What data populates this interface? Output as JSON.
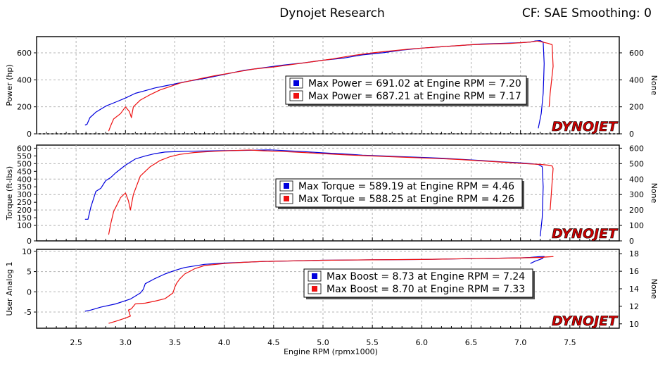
{
  "header": {
    "title": "Dynojet Research",
    "info": "CF: SAE Smoothing: 0"
  },
  "colors": {
    "run1": "#0000dd",
    "run2": "#ee1111",
    "grid": "#b4b4b4",
    "logo_red": "#cc0000"
  },
  "logo": "DYNOJET",
  "chart_data": [
    {
      "type": "line",
      "ylabel": "Power (hp)",
      "y2label": "None",
      "xlim": [
        2.1,
        8.0
      ],
      "ylim": [
        0,
        720
      ],
      "yticks": [
        0,
        200,
        400,
        600
      ],
      "y2ticks": [
        0,
        200,
        400,
        600
      ],
      "grid": true,
      "legend": [
        "Max Power = 691.02 at Engine RPM = 7.20",
        "Max Power = 687.21 at Engine RPM = 7.17"
      ],
      "series": [
        {
          "color": "run1",
          "x": [
            2.59,
            2.61,
            2.64,
            2.7,
            2.8,
            2.9,
            3.0,
            3.1,
            3.2,
            3.3,
            3.4,
            3.5,
            3.6,
            3.8,
            4.0,
            4.2,
            4.4,
            4.6,
            4.8,
            5.0,
            5.2,
            5.4,
            5.6,
            5.8,
            6.0,
            6.2,
            6.4,
            6.6,
            6.8,
            7.0,
            7.1,
            7.15,
            7.2,
            7.23,
            7.24,
            7.23,
            7.21,
            7.18
          ],
          "y": [
            65,
            70,
            120,
            160,
            205,
            235,
            265,
            300,
            320,
            340,
            355,
            370,
            385,
            410,
            440,
            470,
            490,
            510,
            525,
            545,
            560,
            585,
            600,
            620,
            635,
            645,
            655,
            665,
            670,
            675,
            680,
            688,
            691,
            680,
            520,
            300,
            150,
            40
          ]
        },
        {
          "color": "run2",
          "x": [
            2.83,
            2.85,
            2.88,
            2.95,
            3.0,
            3.04,
            3.06,
            3.08,
            3.15,
            3.25,
            3.35,
            3.45,
            3.55,
            3.7,
            3.9,
            4.1,
            4.3,
            4.5,
            4.7,
            4.9,
            5.1,
            5.3,
            5.5,
            5.7,
            5.9,
            6.1,
            6.3,
            6.5,
            6.7,
            6.9,
            7.1,
            7.17,
            7.22,
            7.28,
            7.32,
            7.33,
            7.3,
            7.29
          ],
          "y": [
            20,
            60,
            110,
            150,
            200,
            165,
            120,
            200,
            250,
            290,
            325,
            350,
            375,
            400,
            430,
            455,
            480,
            495,
            515,
            535,
            555,
            580,
            600,
            615,
            630,
            640,
            650,
            660,
            665,
            670,
            680,
            687,
            680,
            670,
            660,
            500,
            300,
            200
          ]
        }
      ]
    },
    {
      "type": "line",
      "ylabel": "Torque (ft-lbs)",
      "y2label": "None",
      "xlim": [
        2.1,
        8.0
      ],
      "ylim": [
        0,
        620
      ],
      "yticks": [
        0,
        100,
        150,
        200,
        250,
        300,
        350,
        400,
        450,
        500,
        550,
        600
      ],
      "y2ticks": [
        0,
        100,
        200,
        300,
        400,
        500,
        600
      ],
      "grid": true,
      "legend": [
        "Max Torque = 589.19 at Engine RPM = 4.46",
        "Max Torque = 588.25 at Engine RPM = 4.26"
      ],
      "series": [
        {
          "color": "run1",
          "x": [
            2.59,
            2.62,
            2.65,
            2.7,
            2.75,
            2.8,
            2.85,
            2.9,
            3.0,
            3.1,
            3.2,
            3.3,
            3.4,
            3.6,
            3.8,
            4.0,
            4.2,
            4.46,
            4.6,
            4.8,
            5.0,
            5.2,
            5.4,
            5.6,
            5.8,
            6.0,
            6.2,
            6.4,
            6.6,
            6.8,
            7.0,
            7.1,
            7.18,
            7.22,
            7.23,
            7.22,
            7.2
          ],
          "y": [
            140,
            140,
            220,
            320,
            340,
            390,
            410,
            440,
            490,
            530,
            550,
            565,
            575,
            580,
            582,
            584,
            586,
            589,
            585,
            578,
            570,
            563,
            555,
            550,
            545,
            540,
            535,
            528,
            520,
            512,
            505,
            500,
            495,
            480,
            350,
            150,
            30
          ]
        },
        {
          "color": "run2",
          "x": [
            2.83,
            2.85,
            2.88,
            2.95,
            3.0,
            3.03,
            3.05,
            3.08,
            3.15,
            3.25,
            3.35,
            3.45,
            3.55,
            3.7,
            3.9,
            4.1,
            4.26,
            4.4,
            4.6,
            4.8,
            5.0,
            5.2,
            5.4,
            5.6,
            5.8,
            6.0,
            6.2,
            6.4,
            6.6,
            6.8,
            7.0,
            7.1,
            7.2,
            7.28,
            7.32,
            7.33,
            7.3
          ],
          "y": [
            40,
            110,
            190,
            280,
            310,
            260,
            200,
            300,
            420,
            480,
            520,
            545,
            560,
            572,
            580,
            585,
            588,
            583,
            578,
            572,
            565,
            558,
            552,
            547,
            542,
            537,
            532,
            526,
            518,
            510,
            502,
            498,
            495,
            490,
            485,
            470,
            200
          ]
        }
      ]
    },
    {
      "type": "line",
      "ylabel": "User Analog 1",
      "y2label": "None",
      "xlim": [
        2.1,
        8.0
      ],
      "ylim": [
        -9,
        10.5
      ],
      "yticks": [
        -5,
        0,
        5,
        10
      ],
      "y2range": [
        9.5,
        18.5
      ],
      "y2ticks": [
        10,
        12,
        14,
        16,
        18
      ],
      "grid": true,
      "legend": [
        "Max Boost = 8.73 at Engine RPM = 7.24",
        "Max Boost = 8.70 at Engine RPM = 7.33"
      ],
      "series": [
        {
          "color": "run1",
          "x": [
            2.59,
            2.65,
            2.75,
            2.9,
            3.05,
            3.15,
            3.18,
            3.2,
            3.3,
            3.4,
            3.5,
            3.6,
            3.8,
            4.0,
            4.2,
            4.4,
            4.6,
            4.8,
            5.0,
            5.5,
            6.0,
            6.5,
            7.0,
            7.1,
            7.15,
            7.2,
            7.24,
            7.22,
            7.15,
            7.1
          ],
          "y": [
            -4.8,
            -4.5,
            -3.8,
            -3.0,
            -1.8,
            -0.3,
            0.6,
            2.0,
            3.3,
            4.4,
            5.3,
            6.0,
            6.8,
            7.1,
            7.3,
            7.5,
            7.6,
            7.7,
            7.8,
            7.9,
            8.0,
            8.2,
            8.4,
            8.5,
            8.6,
            8.7,
            8.73,
            8.2,
            7.6,
            7.0
          ]
        },
        {
          "color": "run2",
          "x": [
            2.83,
            2.9,
            3.0,
            3.05,
            3.03,
            3.06,
            3.1,
            3.2,
            3.3,
            3.4,
            3.48,
            3.5,
            3.52,
            3.55,
            3.6,
            3.7,
            3.8,
            4.0,
            4.2,
            4.4,
            4.6,
            4.8,
            5.0,
            5.5,
            6.0,
            6.5,
            7.0,
            7.2,
            7.33,
            7.25,
            7.2
          ],
          "y": [
            -7.8,
            -7.3,
            -6.5,
            -6.0,
            -4.5,
            -4.2,
            -3.0,
            -2.8,
            -2.3,
            -1.7,
            -0.3,
            1.2,
            2.2,
            3.2,
            4.4,
            5.7,
            6.5,
            7.0,
            7.3,
            7.5,
            7.6,
            7.7,
            7.8,
            7.9,
            8.0,
            8.2,
            8.4,
            8.5,
            8.7,
            8.6,
            8.4
          ]
        }
      ]
    }
  ],
  "xaxis": {
    "label": "Engine RPM (rpmx1000)",
    "ticks": [
      2.5,
      3.0,
      3.5,
      4.0,
      4.5,
      5.0,
      5.5,
      6.0,
      6.5,
      7.0,
      7.5
    ],
    "tick_labels": [
      "2.5",
      "3.0",
      "3.5",
      "4.0",
      "4.5",
      "5.0",
      "5.5",
      "6.0",
      "6.5",
      "7.0",
      "7.5"
    ]
  }
}
